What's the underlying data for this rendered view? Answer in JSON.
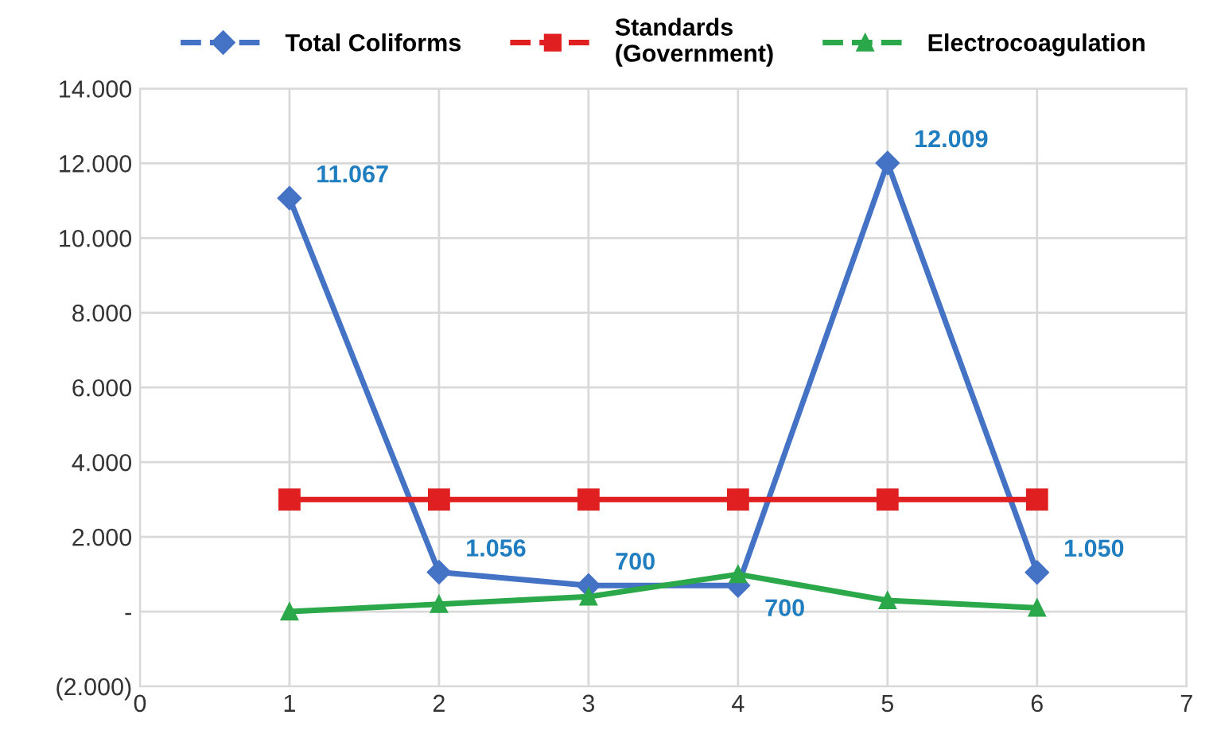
{
  "chart_data": {
    "type": "line",
    "x": [
      1,
      2,
      3,
      4,
      5,
      6
    ],
    "series": [
      {
        "name": "Total Coliforms",
        "color": "#4472c4",
        "marker": "diamond",
        "values": [
          11067,
          1056,
          700,
          700,
          12009,
          1050
        ],
        "value_labels": [
          "11.067",
          "1.056",
          "700",
          "700",
          "12.009",
          "1.050"
        ]
      },
      {
        "name": "Standards\n(Government)",
        "color": "#e02020",
        "marker": "square",
        "values": [
          3000,
          3000,
          3000,
          3000,
          3000,
          3000
        ]
      },
      {
        "name": "Electrocoagulation",
        "color": "#2aa84a",
        "marker": "triangle",
        "values": [
          0,
          200,
          400,
          1000,
          300,
          100
        ]
      }
    ],
    "xlim": [
      0,
      7
    ],
    "xticks": [
      0,
      1,
      2,
      3,
      4,
      5,
      6,
      7
    ],
    "ylim": [
      -2000,
      14000
    ],
    "yticks": [
      {
        "value": -2000,
        "label": "(2.000)"
      },
      {
        "value": 0,
        "label": "-"
      },
      {
        "value": 2000,
        "label": "2.000"
      },
      {
        "value": 4000,
        "label": "4.000"
      },
      {
        "value": 6000,
        "label": "6.000"
      },
      {
        "value": 8000,
        "label": "8.000"
      },
      {
        "value": 10000,
        "label": "10.000"
      },
      {
        "value": 12000,
        "label": "12.000"
      },
      {
        "value": 14000,
        "label": "14.000"
      }
    ],
    "grid": true,
    "legend": "top",
    "line_style": "solid"
  }
}
